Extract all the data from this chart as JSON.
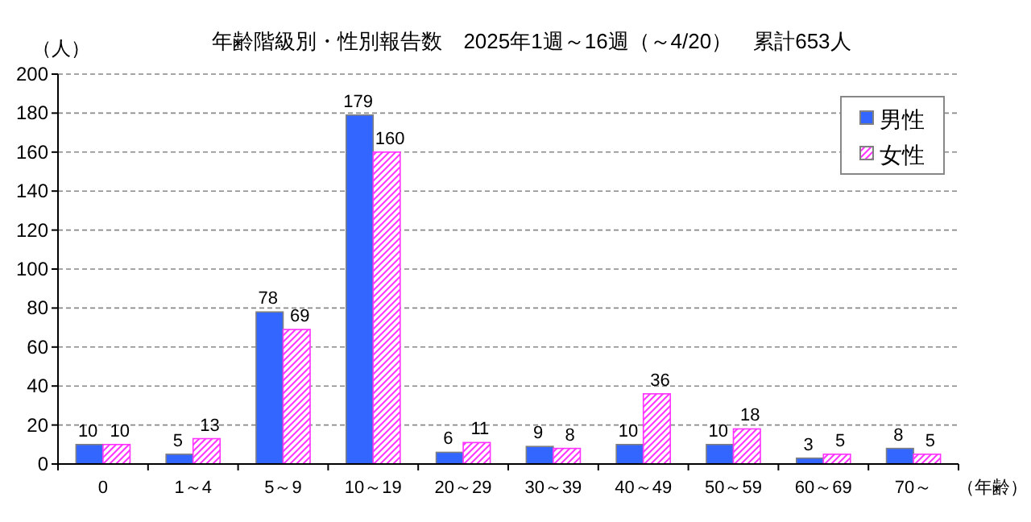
{
  "chart_data": {
    "type": "bar",
    "title": "年齢階級別・性別報告数　2025年1週～16週（～4/20）　累計653人",
    "ylabel": "（人）",
    "xlabel": "（年齢）",
    "categories": [
      "0",
      "1～4",
      "5～9",
      "10～19",
      "20～29",
      "30～39",
      "40～49",
      "50～59",
      "60～69",
      "70～"
    ],
    "series": [
      {
        "name": "男性",
        "color": "#3366ff",
        "values": [
          10,
          5,
          78,
          179,
          6,
          9,
          10,
          10,
          3,
          8
        ]
      },
      {
        "name": "女性",
        "color": "#ff33ff",
        "values": [
          10,
          13,
          69,
          160,
          11,
          8,
          36,
          18,
          5,
          5
        ]
      }
    ],
    "ylim": [
      0,
      200
    ],
    "yticks": [
      0,
      20,
      40,
      60,
      80,
      100,
      120,
      140,
      160,
      180,
      200
    ],
    "grid": "y",
    "legend": "top right",
    "data_labels": true
  }
}
